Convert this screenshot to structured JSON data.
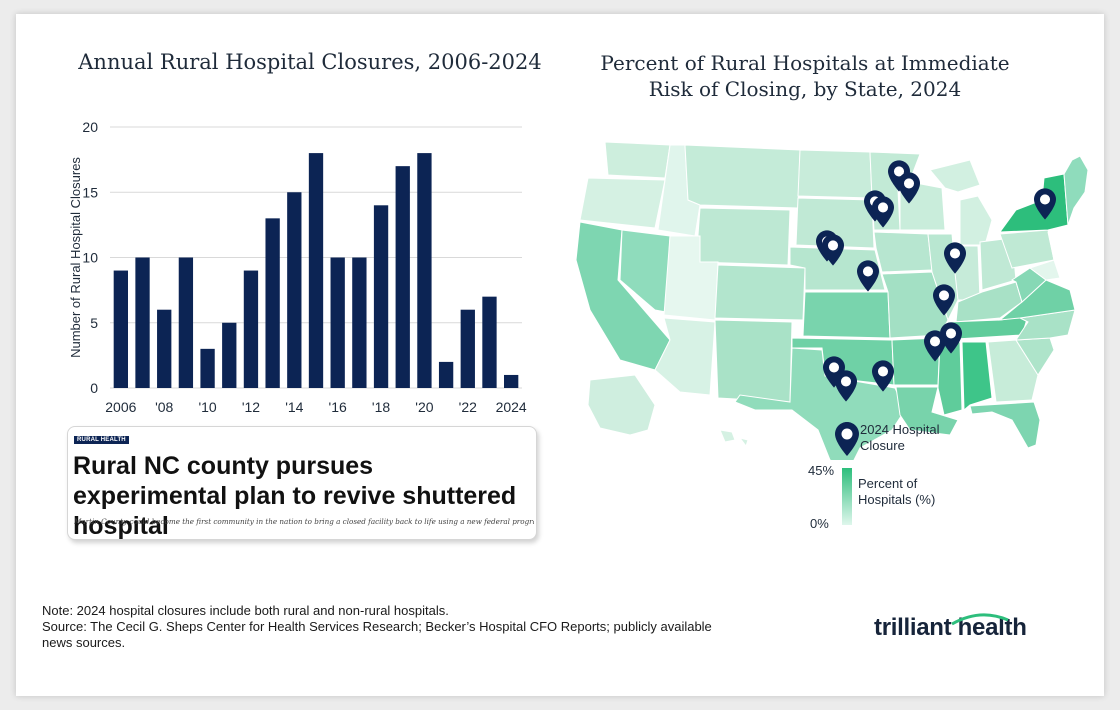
{
  "chart_data": [
    {
      "type": "bar",
      "title": "Annual Rural Hospital Closures, 2006-2024",
      "ylabel": "Number of Rural Hospital Closures",
      "xlabel": "",
      "categories": [
        "2006",
        "2007",
        "2008",
        "2009",
        "2010",
        "2011",
        "2012",
        "2013",
        "2014",
        "2015",
        "2016",
        "2017",
        "2018",
        "2019",
        "2020",
        "2021",
        "2022",
        "2023",
        "2024"
      ],
      "values": [
        9,
        10,
        6,
        10,
        3,
        5,
        9,
        13,
        15,
        18,
        10,
        10,
        14,
        17,
        18,
        2,
        6,
        7,
        1
      ],
      "x_tick_labels": [
        "2006",
        "'08",
        "'10",
        "'12",
        "'14",
        "'16",
        "'18",
        "'20",
        "'22",
        "2024"
      ],
      "y_ticks": [
        "0",
        "5",
        "10",
        "15",
        "20"
      ],
      "ylim": [
        0,
        20
      ],
      "grid": true,
      "bar_color": "#0c2454"
    },
    {
      "type": "heatmap",
      "subtype": "choropleth-map",
      "title": "Percent of Rural Hospitals at Immediate Risk of Closing, by State, 2024",
      "scale_min_label": "0%",
      "scale_max_label": "45%",
      "scale_label": "Percent of Hospitals (%)",
      "marker_label": "2024 Hospital Closure",
      "closure_marker_count": 16,
      "color_low": "#dff6ec",
      "color_high": "#2dbe7c",
      "pin_color": "#0c2454"
    }
  ],
  "news": {
    "tag": "RURAL HEALTH",
    "headline": "Rural NC county pursues experimental plan to revive shuttered hospital",
    "subhead": "Martin County could become the first community in the nation to bring a closed facility back to life using a new federal program"
  },
  "legend": {
    "marker_label": "2024 Hospital Closure",
    "max_label": "45%",
    "min_label": "0%",
    "scale_label": "Percent of Hospitals (%)"
  },
  "notes": {
    "line1": "Note: 2024 hospital closures include both rural and non-rural hospitals.",
    "line2": "Source: The Cecil G. Sheps Center for Health Services Research; Becker’s Hospital CFO Reports; publicly available news sources."
  },
  "logo": {
    "text": "trilliant health"
  }
}
